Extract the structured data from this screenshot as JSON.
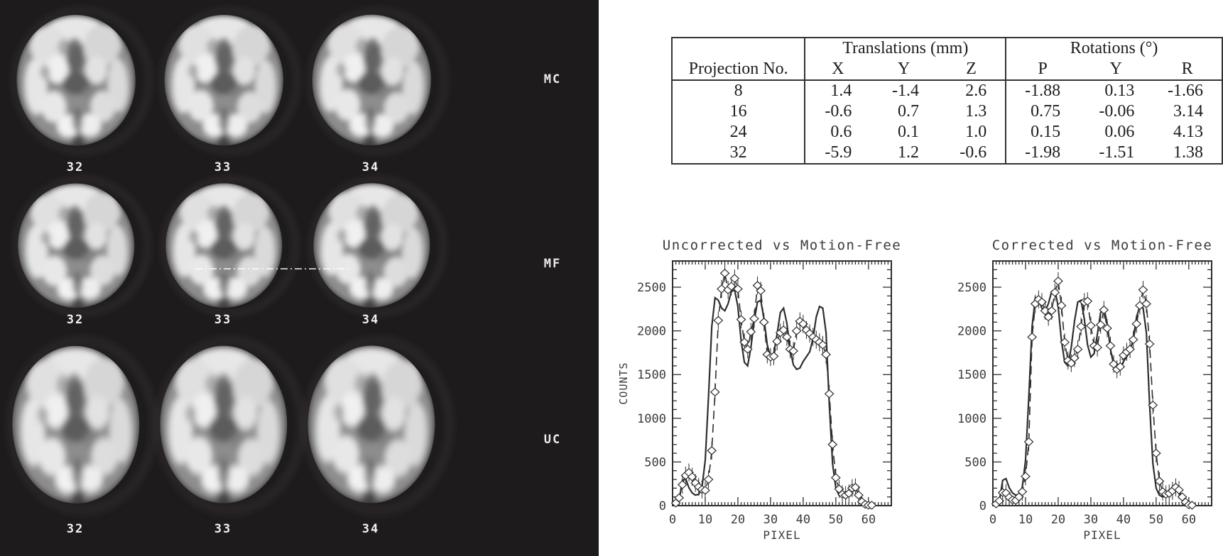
{
  "panel": {
    "bg": "#1e1b1c",
    "rows": [
      {
        "label": "MC",
        "slices": [
          "32",
          "33",
          "34"
        ]
      },
      {
        "label": "MF",
        "slices": [
          "32",
          "33",
          "34"
        ],
        "profile_line_on_slice": "33"
      },
      {
        "label": "UC",
        "slices": [
          "32",
          "33",
          "34"
        ]
      }
    ]
  },
  "table": {
    "col1_header": "Projection No.",
    "groups": [
      {
        "title": "Translations (mm)",
        "cols": [
          "X",
          "Y",
          "Z"
        ]
      },
      {
        "title": "Rotations (°)",
        "cols": [
          "P",
          "Y",
          "R"
        ]
      }
    ],
    "rows": [
      {
        "projection": "8",
        "translations": [
          "1.4",
          "-1.4",
          "2.6"
        ],
        "rotations": [
          "-1.88",
          "0.13",
          "-1.66"
        ]
      },
      {
        "projection": "16",
        "translations": [
          "-0.6",
          "0.7",
          "1.3"
        ],
        "rotations": [
          "0.75",
          "-0.06",
          "3.14"
        ]
      },
      {
        "projection": "24",
        "translations": [
          "0.6",
          "0.1",
          "1.0"
        ],
        "rotations": [
          "0.15",
          "0.06",
          "4.13"
        ]
      },
      {
        "projection": "32",
        "translations": [
          "-5.9",
          "1.2",
          "-0.6"
        ],
        "rotations": [
          "-1.98",
          "-1.51",
          "1.38"
        ]
      }
    ]
  },
  "chart_data": [
    {
      "type": "line",
      "title": "Uncorrected vs Motion-Free",
      "xlabel": "PIXEL",
      "ylabel": "COUNTS",
      "xlim": [
        0,
        67
      ],
      "ylim": [
        0,
        2800
      ],
      "xticks": [
        0,
        10,
        20,
        30,
        40,
        50,
        60
      ],
      "yticks": [
        0,
        500,
        1000,
        1500,
        2000,
        2500
      ],
      "grid": false,
      "legend": "none",
      "x": [
        0,
        1,
        2,
        3,
        4,
        5,
        6,
        7,
        8,
        9,
        10,
        11,
        12,
        13,
        14,
        15,
        16,
        17,
        18,
        19,
        20,
        21,
        22,
        23,
        24,
        25,
        26,
        27,
        28,
        29,
        30,
        31,
        32,
        33,
        34,
        35,
        36,
        37,
        38,
        39,
        40,
        41,
        42,
        43,
        44,
        45,
        46,
        47,
        48,
        49,
        50,
        51,
        52,
        53,
        54,
        55,
        56,
        57,
        58,
        59,
        60,
        61
      ],
      "series": [
        {
          "name": "Motion-Free",
          "style": "solid",
          "values": [
            5,
            20,
            60,
            290,
            310,
            205,
            145,
            120,
            130,
            210,
            520,
            1250,
            2050,
            2380,
            2350,
            2260,
            2230,
            2310,
            2450,
            2470,
            2280,
            1890,
            1640,
            1600,
            1810,
            2110,
            2330,
            2350,
            2140,
            1840,
            1700,
            1740,
            1960,
            2210,
            2260,
            2090,
            1790,
            1610,
            1560,
            1575,
            1650,
            1705,
            1760,
            1910,
            2160,
            2280,
            2260,
            1980,
            1150,
            480,
            200,
            120,
            100,
            110,
            130,
            160,
            185,
            150,
            85,
            30,
            10,
            5
          ]
        },
        {
          "name": "Uncorrected",
          "style": "dashed-diamond",
          "error": 70,
          "values": [
            5,
            30,
            90,
            240,
            345,
            380,
            330,
            260,
            215,
            185,
            175,
            300,
            630,
            1300,
            2120,
            2480,
            2660,
            2470,
            2510,
            2600,
            2480,
            2130,
            1870,
            1790,
            1990,
            2140,
            2520,
            2460,
            2100,
            1730,
            1700,
            1710,
            1880,
            1980,
            2010,
            1930,
            1790,
            1770,
            2000,
            2110,
            2080,
            2010,
            1970,
            1930,
            1900,
            1870,
            1840,
            1730,
            1280,
            700,
            320,
            190,
            130,
            120,
            140,
            200,
            210,
            120,
            45,
            15,
            5,
            5
          ]
        }
      ]
    },
    {
      "type": "line",
      "title": "Corrected vs Motion-Free",
      "xlabel": "PIXEL",
      "ylabel": "",
      "xlim": [
        0,
        67
      ],
      "ylim": [
        0,
        2800
      ],
      "xticks": [
        0,
        10,
        20,
        30,
        40,
        50,
        60
      ],
      "yticks": [
        0,
        500,
        1000,
        1500,
        2000,
        2500
      ],
      "grid": false,
      "legend": "none",
      "x": [
        0,
        1,
        2,
        3,
        4,
        5,
        6,
        7,
        8,
        9,
        10,
        11,
        12,
        13,
        14,
        15,
        16,
        17,
        18,
        19,
        20,
        21,
        22,
        23,
        24,
        25,
        26,
        27,
        28,
        29,
        30,
        31,
        32,
        33,
        34,
        35,
        36,
        37,
        38,
        39,
        40,
        41,
        42,
        43,
        44,
        45,
        46,
        47,
        48,
        49,
        50,
        51,
        52,
        53,
        54,
        55,
        56,
        57,
        58,
        59,
        60,
        61
      ],
      "series": [
        {
          "name": "Motion-Free",
          "style": "solid",
          "values": [
            5,
            20,
            60,
            290,
            310,
            205,
            145,
            120,
            130,
            210,
            520,
            1250,
            2050,
            2380,
            2350,
            2260,
            2230,
            2310,
            2450,
            2470,
            2280,
            1890,
            1640,
            1600,
            1810,
            2110,
            2330,
            2350,
            2140,
            1840,
            1700,
            1740,
            1960,
            2210,
            2260,
            2090,
            1790,
            1610,
            1560,
            1575,
            1650,
            1705,
            1760,
            1910,
            2160,
            2280,
            2260,
            1980,
            1150,
            480,
            200,
            120,
            100,
            110,
            130,
            160,
            185,
            150,
            85,
            30,
            10,
            5
          ]
        },
        {
          "name": "Corrected",
          "style": "dashed-diamond",
          "error": 70,
          "values": [
            5,
            20,
            55,
            150,
            145,
            95,
            65,
            60,
            100,
            160,
            335,
            730,
            1930,
            2310,
            2360,
            2330,
            2230,
            2160,
            2230,
            2440,
            2570,
            2290,
            1870,
            1660,
            1630,
            1690,
            1790,
            2050,
            2330,
            2340,
            2060,
            1830,
            1810,
            2070,
            2240,
            2030,
            1830,
            1620,
            1560,
            1590,
            1720,
            1760,
            1790,
            1900,
            2080,
            2290,
            2470,
            2310,
            1850,
            1150,
            600,
            280,
            160,
            130,
            140,
            170,
            210,
            180,
            100,
            40,
            10,
            5
          ]
        }
      ]
    }
  ],
  "colors": {
    "panel_bg": "#1e1b1c",
    "ink": "#2e2e2e",
    "chart_ink": "#3c3c3c",
    "scan_label": "#ececec"
  }
}
